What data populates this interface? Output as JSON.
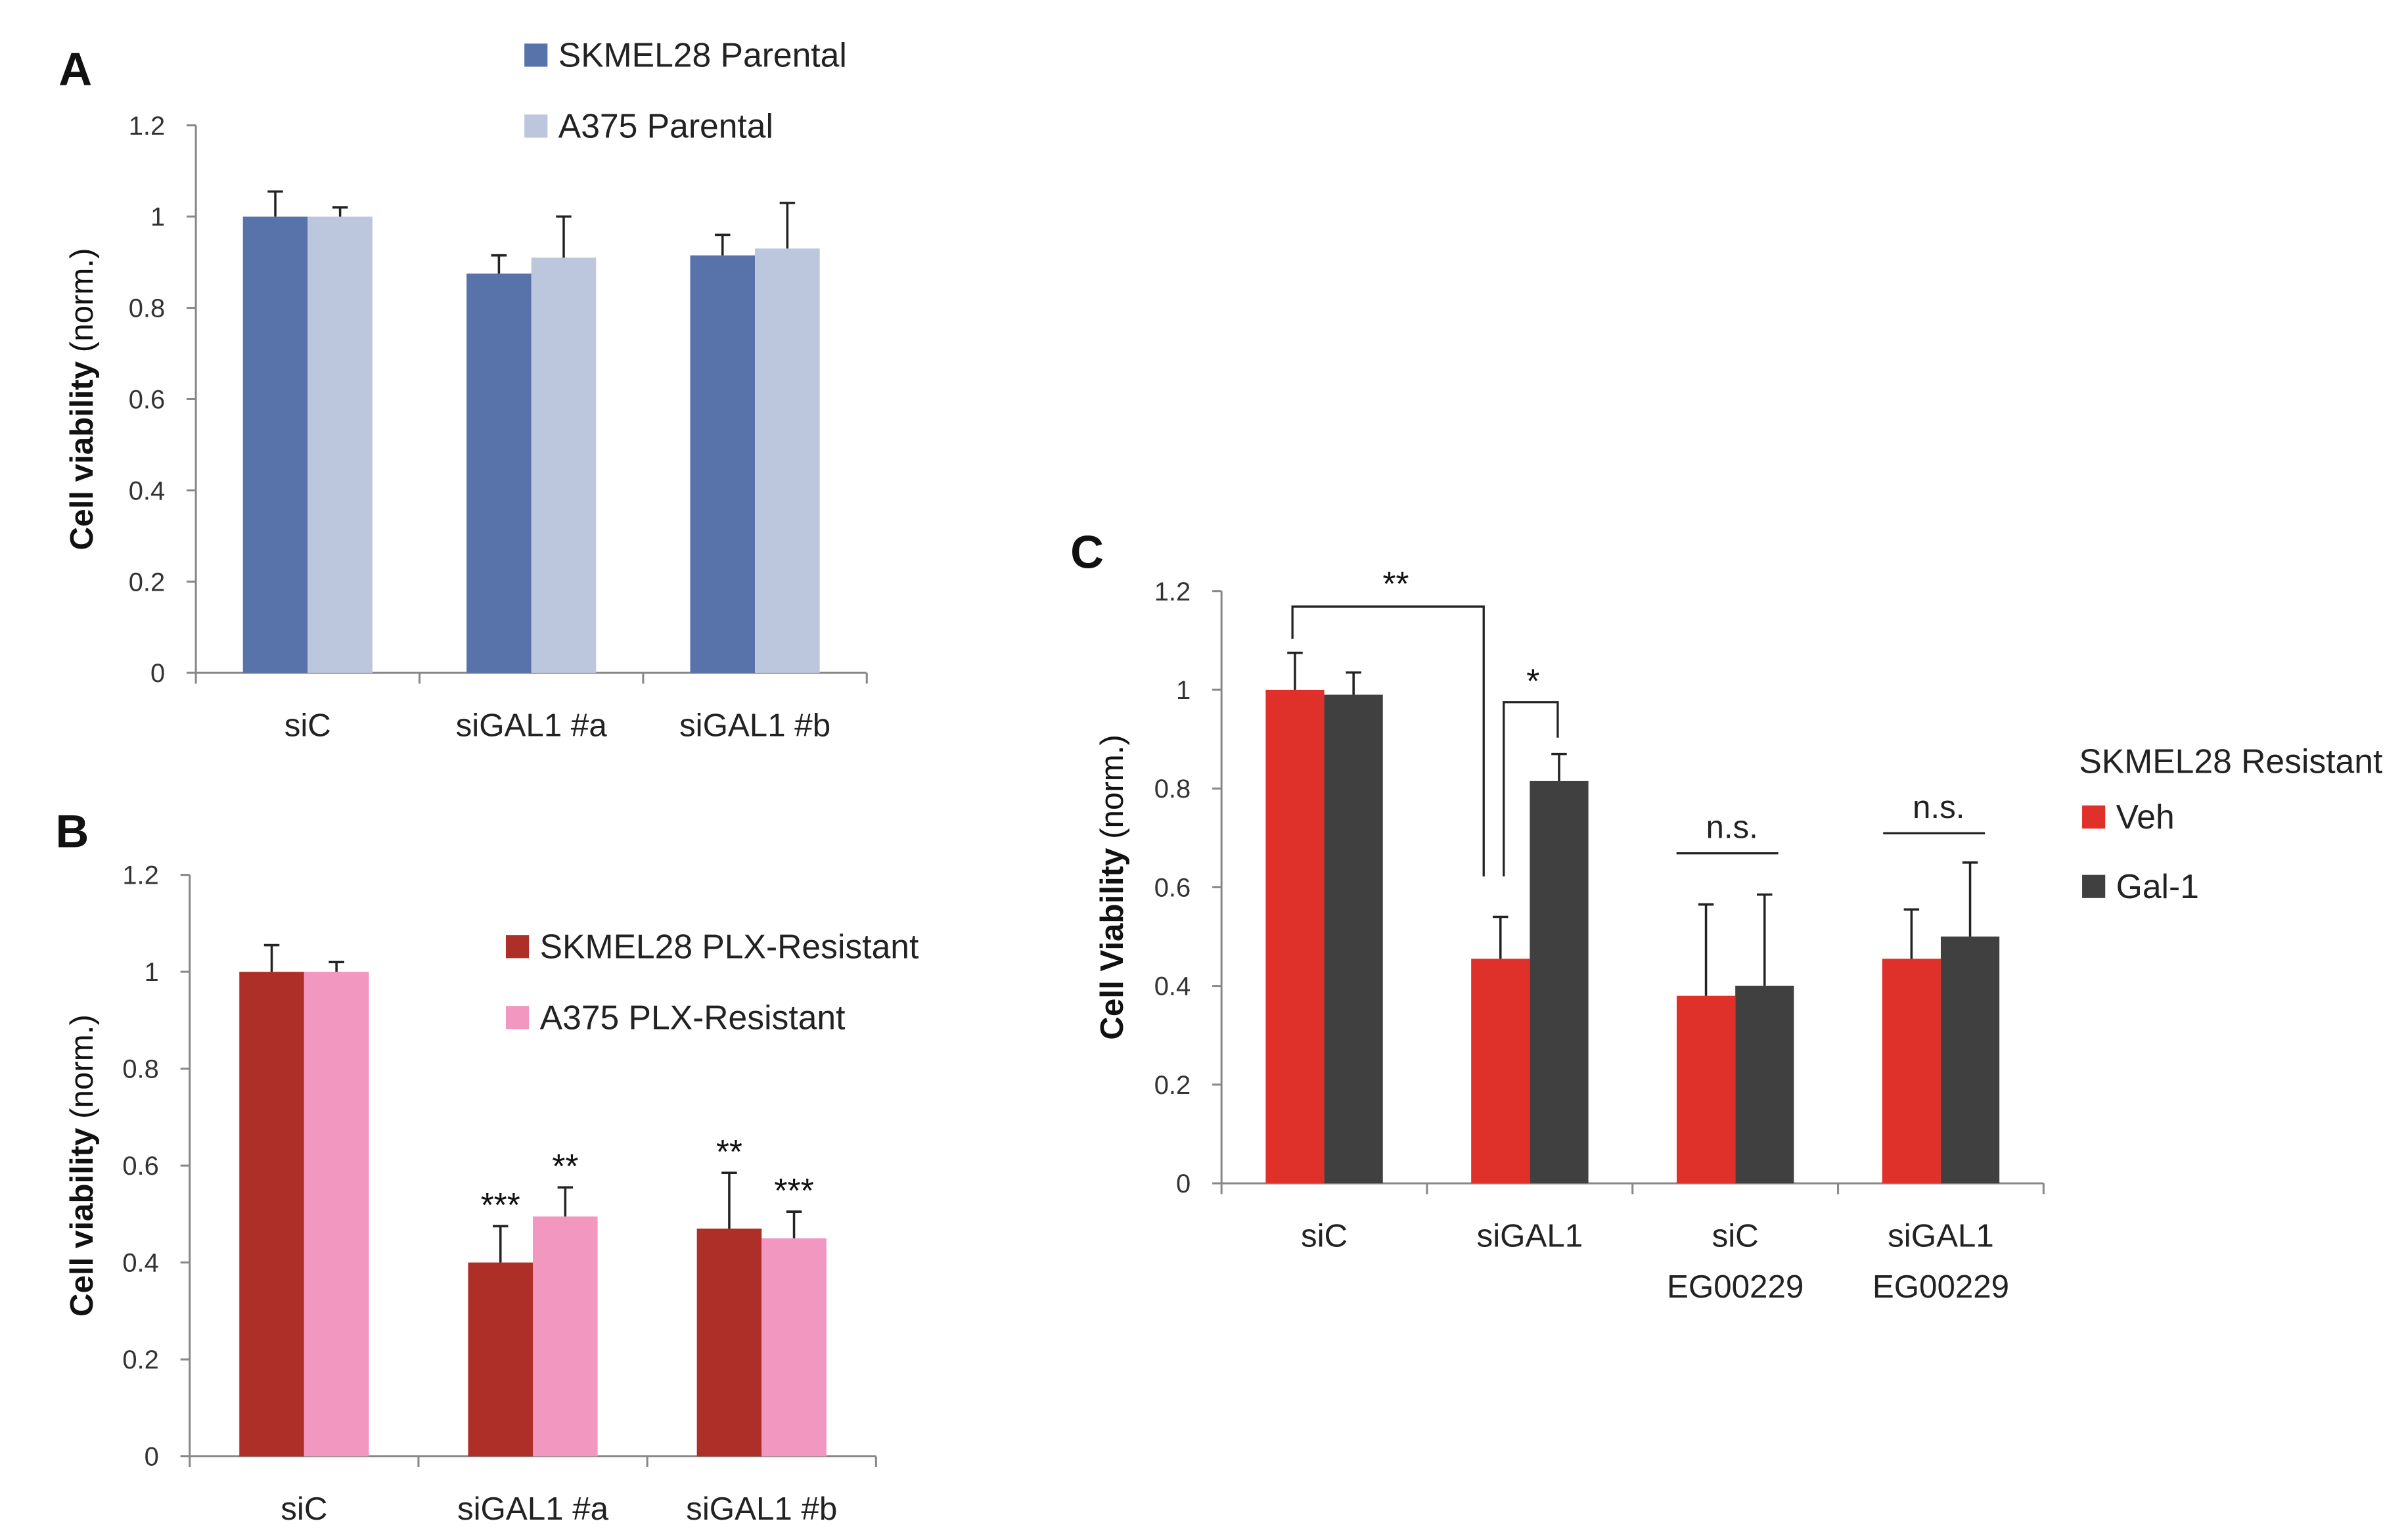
{
  "chart_data": [
    {
      "panel": "A",
      "type": "bar",
      "ylabel_bold": "Cell viability",
      "ylabel_rest": " (norm.)",
      "ylim": [
        0,
        1.2
      ],
      "yticks": [
        "0",
        "0.2",
        "0.4",
        "0.6",
        "0.8",
        "1",
        "1.2"
      ],
      "categories": [
        [
          "siC"
        ],
        [
          "siGAL1 #a"
        ],
        [
          "siGAL1 #b"
        ]
      ],
      "series": [
        {
          "name": "SKMEL28 Parental",
          "color": "#5873a9",
          "values": [
            1.0,
            0.875,
            0.915
          ],
          "errors": [
            0.055,
            0.04,
            0.045
          ],
          "sig": [
            "",
            "",
            ""
          ]
        },
        {
          "name": "A375 Parental",
          "color": "#bcc6dc",
          "values": [
            1.0,
            0.91,
            0.93
          ],
          "errors": [
            0.02,
            0.09,
            0.1
          ],
          "sig": [
            "",
            "",
            ""
          ]
        }
      ]
    },
    {
      "panel": "B",
      "type": "bar",
      "ylabel_bold": "Cell viability",
      "ylabel_rest": " (norm.)",
      "ylim": [
        0,
        1.2
      ],
      "yticks": [
        "0",
        "0.2",
        "0.4",
        "0.6",
        "0.8",
        "1",
        "1.2"
      ],
      "categories": [
        [
          "siC"
        ],
        [
          "siGAL1 #a"
        ],
        [
          "siGAL1 #b"
        ]
      ],
      "series": [
        {
          "name": "SKMEL28 PLX-Resistant",
          "color": "#ae2f27",
          "values": [
            1.0,
            0.4,
            0.47
          ],
          "errors": [
            0.055,
            0.075,
            0.115
          ],
          "sig": [
            "",
            "***",
            "**"
          ]
        },
        {
          "name": "A375 PLX-Resistant",
          "color": "#f197c0",
          "values": [
            1.0,
            0.495,
            0.45
          ],
          "errors": [
            0.02,
            0.06,
            0.055
          ],
          "sig": [
            "",
            "**",
            "***"
          ]
        }
      ]
    },
    {
      "panel": "C",
      "type": "bar",
      "ylabel_bold": "Cell Viability",
      "ylabel_rest": " (norm.)",
      "ylim": [
        0,
        1.2
      ],
      "yticks": [
        "0",
        "0.2",
        "0.4",
        "0.6",
        "0.8",
        "1",
        "1.2"
      ],
      "legend_title": "SKMEL28 Resistant",
      "categories": [
        [
          "siC"
        ],
        [
          "siGAL1"
        ],
        [
          "siC",
          "EG00229"
        ],
        [
          "siGAL1",
          "EG00229"
        ]
      ],
      "series": [
        {
          "name": "Veh",
          "color": "#e0302a",
          "values": [
            1.0,
            0.455,
            0.38,
            0.455
          ],
          "errors": [
            0.075,
            0.085,
            0.185,
            0.1
          ],
          "sig": [
            "",
            "",
            "",
            ""
          ]
        },
        {
          "name": "Gal-1",
          "color": "#404040",
          "values": [
            0.99,
            0.815,
            0.4,
            0.5
          ],
          "errors": [
            0.045,
            0.055,
            0.185,
            0.15
          ],
          "sig": [
            "",
            "",
            "",
            ""
          ]
        }
      ],
      "annotations": [
        {
          "label": "**",
          "type": "bracket",
          "between": "siC Veh vs siGAL1 Veh"
        },
        {
          "label": "*",
          "type": "bracket",
          "between": "siGAL1 Veh vs siGAL1 Gal-1"
        },
        {
          "label": "n.s.",
          "type": "line",
          "group": "siC EG00229"
        },
        {
          "label": "n.s.",
          "type": "line",
          "group": "siGAL1 EG00229"
        }
      ]
    }
  ]
}
